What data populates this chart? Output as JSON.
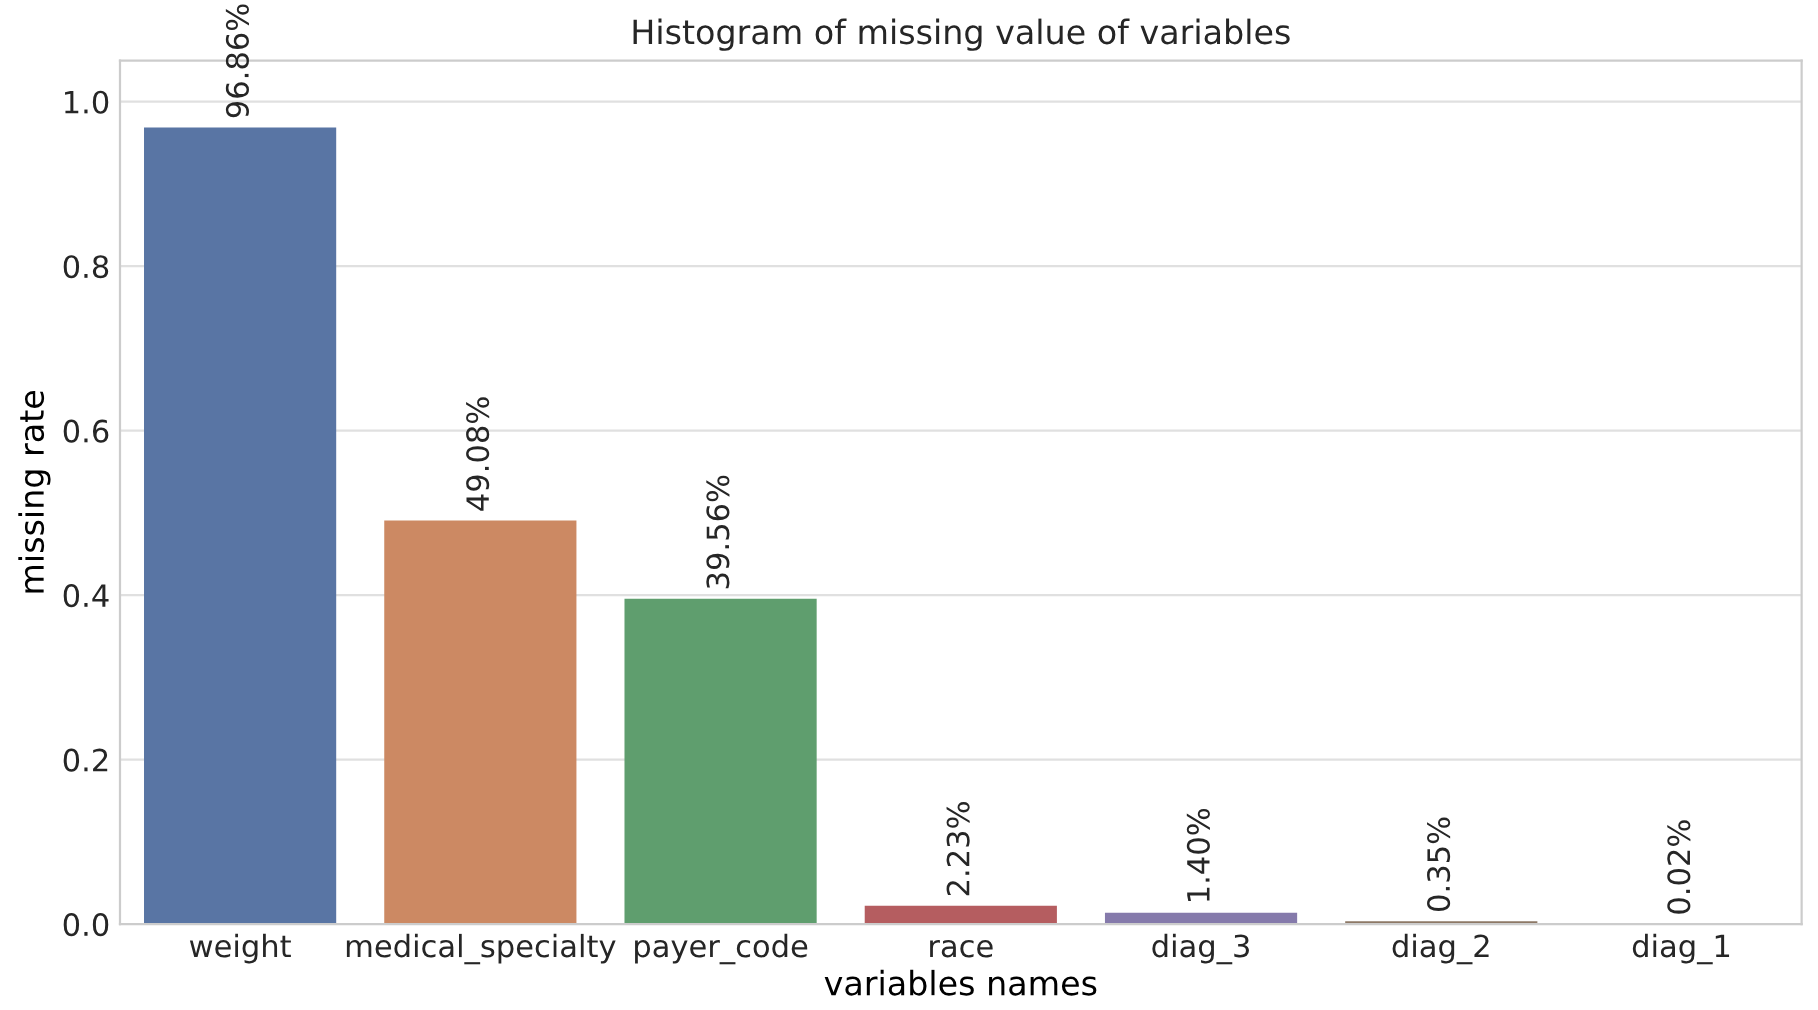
{
  "chart_data": {
    "type": "bar",
    "title": "Histogram of missing value of variables",
    "xlabel": "variables names",
    "ylabel": "missing rate",
    "categories": [
      "weight",
      "medical_specialty",
      "payer_code",
      "race",
      "diag_3",
      "diag_2",
      "diag_1"
    ],
    "values": [
      0.9686,
      0.4908,
      0.3956,
      0.0223,
      0.014,
      0.0035,
      0.0002
    ],
    "value_labels": [
      "96.86%",
      "49.08%",
      "39.56%",
      "2.23%",
      "1.40%",
      "0.35%",
      "0.02%"
    ],
    "colors": [
      "#5975a4",
      "#cc8963",
      "#5f9e6e",
      "#b55d60",
      "#857aab",
      "#8d7866",
      "#d095bf"
    ],
    "ylim": [
      0,
      1.05
    ],
    "yticks": [
      {
        "value": 0,
        "label": "0.0"
      },
      {
        "value": 0.2,
        "label": "0.2"
      },
      {
        "value": 0.4,
        "label": "0.4"
      },
      {
        "value": 0.6,
        "label": "0.6"
      },
      {
        "value": 0.8,
        "label": "0.8"
      },
      {
        "value": 1.0,
        "label": "1.0"
      }
    ],
    "grid": "y"
  }
}
